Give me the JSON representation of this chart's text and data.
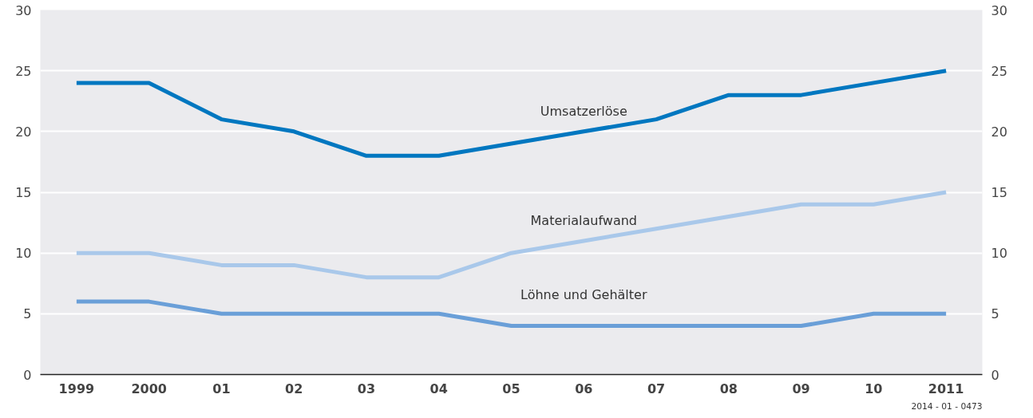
{
  "chart_data": {
    "type": "line",
    "categories": [
      "1999",
      "2000",
      "01",
      "02",
      "03",
      "04",
      "05",
      "06",
      "07",
      "08",
      "09",
      "10",
      "2011"
    ],
    "series": [
      {
        "name": "Umsatzerlöse",
        "color": "#0077c0",
        "values": [
          24,
          24,
          21,
          20,
          18,
          18,
          19,
          20,
          21,
          23,
          23,
          24,
          25
        ]
      },
      {
        "name": "Materialaufwand",
        "color": "#a9c8ea",
        "values": [
          10,
          10,
          9,
          9,
          8,
          8,
          10,
          11,
          12,
          13,
          14,
          14,
          15
        ]
      },
      {
        "name": "Löhne und Gehälter",
        "color": "#6a9fd8",
        "values": [
          6,
          6,
          5,
          5,
          5,
          5,
          4,
          4,
          4,
          4,
          4,
          5,
          5
        ]
      }
    ],
    "ylim": [
      0,
      30
    ],
    "yticks": [
      0,
      5,
      10,
      15,
      20,
      25,
      30
    ],
    "y2lim": [
      0,
      30
    ],
    "y2ticks": [
      0,
      5,
      10,
      15,
      20,
      25,
      30
    ],
    "grid": "y",
    "marker": "none",
    "line_style": "solid",
    "annotations": [
      "2014 - 01 - 0473"
    ]
  }
}
